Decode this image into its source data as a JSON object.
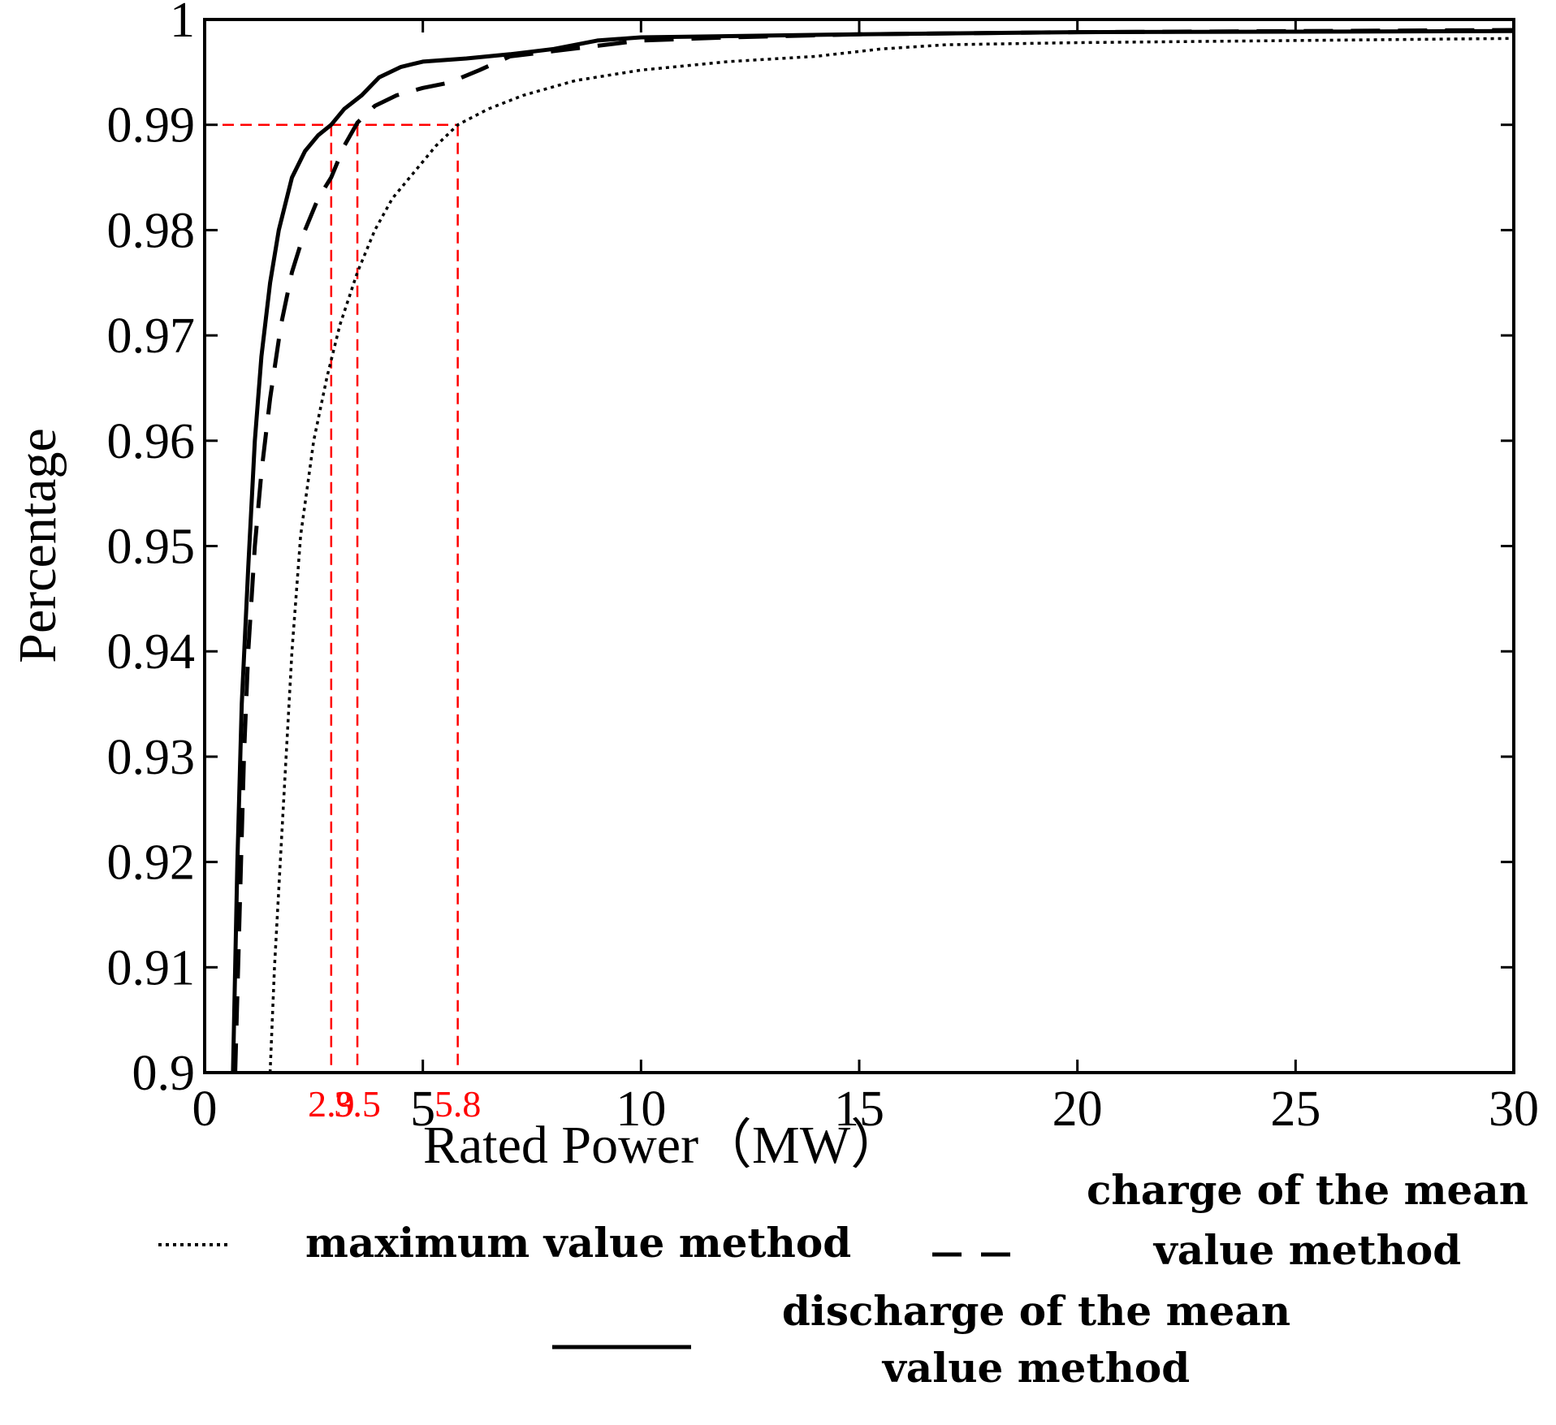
{
  "chart_data": {
    "type": "line",
    "title": "",
    "xlabel": "Rated  Power（MW）",
    "ylabel": "Percentage",
    "xlim": [
      0,
      30
    ],
    "ylim": [
      0.9,
      1.0
    ],
    "x_ticks": [
      "0",
      "5",
      "10",
      "15",
      "20",
      "25",
      "30"
    ],
    "y_ticks": [
      "0.9",
      "0.91",
      "0.92",
      "0.93",
      "0.94",
      "0.95",
      "0.96",
      "0.97",
      "0.98",
      "0.99",
      "1"
    ],
    "grid": false,
    "legend_position": "bottom",
    "series": [
      {
        "name": "maximum value method",
        "style": "dotted",
        "color": "#000000",
        "x": [
          1.5,
          1.6,
          1.8,
          2.0,
          2.2,
          2.5,
          2.8,
          3.1,
          3.5,
          3.9,
          4.3,
          4.8,
          5.3,
          5.8,
          6.5,
          7.3,
          8.5,
          10.0,
          12.0,
          14.0,
          15.5,
          17.0,
          20.0,
          25.0,
          30.0
        ],
        "y": [
          0.9,
          0.91,
          0.925,
          0.94,
          0.951,
          0.96,
          0.966,
          0.971,
          0.976,
          0.98,
          0.983,
          0.9855,
          0.988,
          0.99,
          0.9915,
          0.9928,
          0.9942,
          0.9952,
          0.996,
          0.9965,
          0.9972,
          0.9976,
          0.9978,
          0.998,
          0.9982
        ]
      },
      {
        "name": "charge of the mean value method",
        "style": "dashed",
        "color": "#000000",
        "x": [
          0.7,
          0.8,
          0.9,
          1.0,
          1.15,
          1.3,
          1.5,
          1.75,
          2.0,
          2.3,
          2.6,
          2.9,
          3.2,
          3.5,
          3.9,
          4.4,
          5.0,
          5.6,
          6.3,
          7.0,
          8.0,
          9.0,
          10.0,
          12.0,
          15.0,
          20.0,
          30.0
        ],
        "y": [
          0.9,
          0.915,
          0.93,
          0.94,
          0.95,
          0.957,
          0.964,
          0.971,
          0.976,
          0.98,
          0.983,
          0.985,
          0.988,
          0.9902,
          0.9918,
          0.9928,
          0.9935,
          0.994,
          0.9952,
          0.9965,
          0.997,
          0.9975,
          0.998,
          0.9983,
          0.9986,
          0.9988,
          0.999
        ]
      },
      {
        "name": "discharge of the mean value method",
        "style": "solid",
        "color": "#000000",
        "x": [
          0.65,
          0.75,
          0.85,
          1.0,
          1.15,
          1.3,
          1.5,
          1.7,
          2.0,
          2.3,
          2.6,
          2.9,
          3.2,
          3.6,
          4.0,
          4.5,
          5.0,
          6.0,
          7.0,
          8.0,
          9.0,
          10.0,
          15.0,
          20.0,
          30.0
        ],
        "y": [
          0.9,
          0.92,
          0.935,
          0.948,
          0.96,
          0.968,
          0.975,
          0.98,
          0.985,
          0.9875,
          0.989,
          0.99,
          0.9915,
          0.9928,
          0.9945,
          0.9955,
          0.996,
          0.9963,
          0.9967,
          0.9972,
          0.998,
          0.9983,
          0.9986,
          0.9988,
          0.9989
        ]
      }
    ],
    "threshold": {
      "y": 0.99,
      "color": "#ff0000",
      "style": "dashed"
    },
    "annotations": [
      {
        "x": 2.9,
        "label": "2.9"
      },
      {
        "x": 3.5,
        "label": "3.5"
      },
      {
        "x": 5.8,
        "label": "5.8"
      }
    ]
  },
  "legend": {
    "items": [
      {
        "lines": [
          "maximum value method"
        ]
      },
      {
        "lines": [
          "charge of the mean",
          "value method"
        ]
      },
      {
        "lines": [
          "discharge of the mean",
          "value method"
        ]
      }
    ]
  }
}
